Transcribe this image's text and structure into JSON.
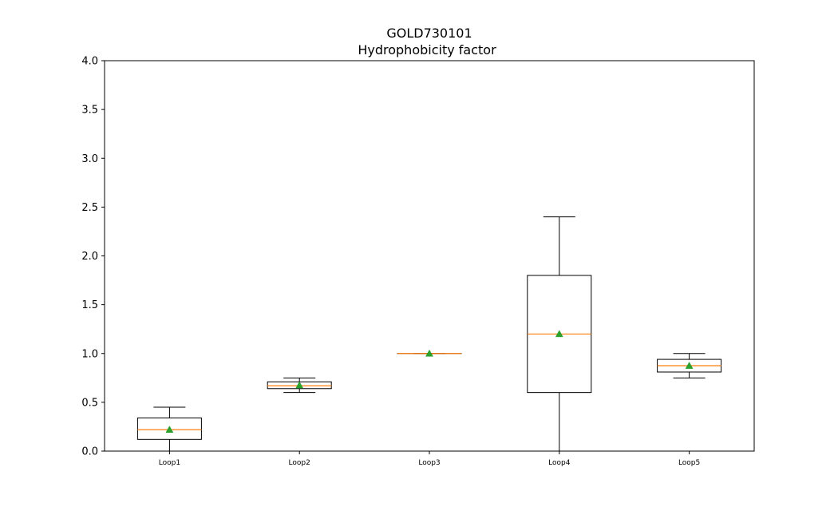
{
  "chart_data": {
    "type": "box",
    "title": "GOLD730101",
    "subtitle": "Hydrophobicity factor",
    "xlabel": "",
    "ylabel": "",
    "ylim": [
      0,
      4
    ],
    "yticks": [
      "0.0",
      "0.5",
      "1.0",
      "1.5",
      "2.0",
      "2.5",
      "3.0",
      "3.5",
      "4.0"
    ],
    "grid": false,
    "categories": [
      "Loop1",
      "Loop2",
      "Loop3",
      "Loop4",
      "Loop5"
    ],
    "boxes": [
      {
        "category": "Loop1",
        "whisker_low": 0.0,
        "q1": 0.12,
        "median": 0.22,
        "q3": 0.34,
        "whisker_high": 0.45,
        "mean": 0.22
      },
      {
        "category": "Loop2",
        "whisker_low": 0.6,
        "q1": 0.64,
        "median": 0.67,
        "q3": 0.71,
        "whisker_high": 0.75,
        "mean": 0.675
      },
      {
        "category": "Loop3",
        "whisker_low": 1.0,
        "q1": 1.0,
        "median": 1.0,
        "q3": 1.0,
        "whisker_high": 1.0,
        "mean": 1.0
      },
      {
        "category": "Loop4",
        "whisker_low": 0.0,
        "q1": 0.6,
        "median": 1.2,
        "q3": 1.8,
        "whisker_high": 2.4,
        "mean": 1.2
      },
      {
        "category": "Loop5",
        "whisker_low": 0.75,
        "q1": 0.81,
        "median": 0.875,
        "q3": 0.94,
        "whisker_high": 1.0,
        "mean": 0.875
      }
    ],
    "colors": {
      "box": "#000000",
      "median": "#ff7f0e",
      "mean": "#2ca02c"
    }
  }
}
